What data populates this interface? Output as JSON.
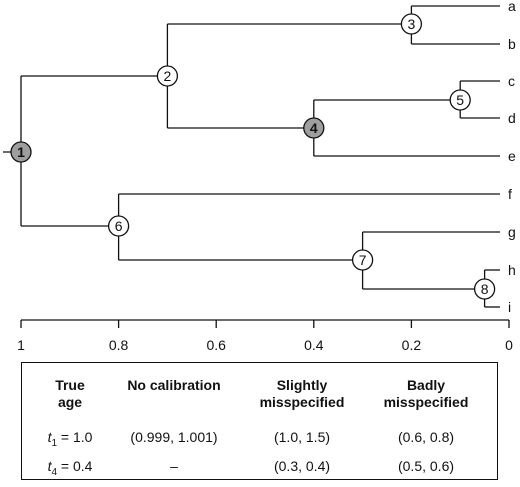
{
  "tree": {
    "leaves": [
      "a",
      "b",
      "c",
      "d",
      "e",
      "f",
      "g",
      "h",
      "i"
    ],
    "nodes": [
      {
        "id": "1",
        "label": "1",
        "age": 1.0,
        "shaded": true
      },
      {
        "id": "2",
        "label": "2",
        "age": 0.7,
        "shaded": false
      },
      {
        "id": "3",
        "label": "3",
        "age": 0.2,
        "shaded": false
      },
      {
        "id": "4",
        "label": "4",
        "age": 0.4,
        "shaded": true
      },
      {
        "id": "5",
        "label": "5",
        "age": 0.1,
        "shaded": false
      },
      {
        "id": "6",
        "label": "6",
        "age": 0.8,
        "shaded": false
      },
      {
        "id": "7",
        "label": "7",
        "age": 0.3,
        "shaded": false
      },
      {
        "id": "8",
        "label": "8",
        "age": 0.05,
        "shaded": false
      }
    ],
    "axis_ticks": [
      "1",
      "0.8",
      "0.6",
      "0.4",
      "0.2",
      "0"
    ]
  },
  "table": {
    "headers": {
      "true_age": [
        "True",
        "age"
      ],
      "no_calibration": "No calibration",
      "slightly": [
        "Slightly",
        "misspecified"
      ],
      "badly": [
        "Badly",
        "misspecified"
      ]
    },
    "rows": [
      {
        "t_sym": "t",
        "t_sub": "1",
        "t_val": "= 1.0",
        "no_cal": "(0.999, 1.001)",
        "slight": "(1.0, 1.5)",
        "bad": "(0.6, 0.8)"
      },
      {
        "t_sym": "t",
        "t_sub": "4",
        "t_val": "= 0.4",
        "no_cal": "–",
        "slight": "(0.3, 0.4)",
        "bad": "(0.5, 0.6)"
      }
    ]
  },
  "colors": {
    "line": "#111111",
    "shaded_node": "#9e9e9e",
    "node_fill": "#ffffff"
  }
}
